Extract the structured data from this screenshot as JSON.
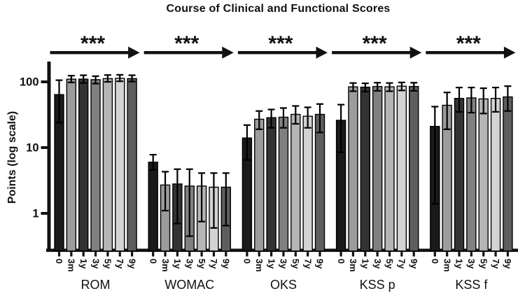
{
  "chart_data": {
    "type": "bar",
    "scale_y": "log10",
    "title": "Course of Clinical and Functional Scores",
    "ylabel": "Points (log scale)",
    "ylim": [
      0.27,
      200
    ],
    "yticks": [
      100,
      10,
      1
    ],
    "ytick_labels": [
      "100",
      "10",
      "1"
    ],
    "grid": false,
    "legend": "none",
    "categories": [
      "0",
      "3m",
      "1y",
      "3y",
      "5y",
      "7y",
      "9y"
    ],
    "bar_colors": [
      "#1a1a1a",
      "#9c9c9c",
      "#333333",
      "#808080",
      "#b5b5b5",
      "#d3d3d3",
      "#5e5e5e"
    ],
    "error_bar_color": "#000000",
    "axis_color": "#111111",
    "significance_marker": "***",
    "groups": [
      {
        "label": "ROM",
        "values": [
          64,
          110,
          110,
          108,
          112,
          113,
          112
        ],
        "err_lo": [
          24,
          98,
          96,
          94,
          100,
          102,
          101
        ],
        "err_hi": [
          106,
          124,
          126,
          122,
          127,
          128,
          126
        ],
        "significance": "***"
      },
      {
        "label": "WOMAC",
        "values": [
          6,
          2.7,
          2.8,
          2.6,
          2.6,
          2.5,
          2.5
        ],
        "err_lo": [
          4.6,
          1.1,
          0.7,
          0.45,
          0.75,
          0.6,
          0.65
        ],
        "err_hi": [
          7.8,
          4.3,
          4.7,
          4.7,
          4.1,
          4.1,
          4.1
        ],
        "significance": "***"
      },
      {
        "label": "OKS",
        "values": [
          14,
          27,
          28.5,
          29,
          32,
          30,
          32
        ],
        "err_lo": [
          6.5,
          19,
          20,
          20,
          23,
          20,
          17
        ],
        "err_hi": [
          22,
          36,
          38,
          40,
          43,
          41,
          46
        ],
        "significance": "***"
      },
      {
        "label": "KSS p",
        "values": [
          26,
          84,
          83,
          85,
          84,
          86,
          85
        ],
        "err_lo": [
          8.5,
          72,
          71,
          73,
          72,
          74,
          73
        ],
        "err_hi": [
          45,
          96,
          95,
          97,
          96,
          98,
          97
        ],
        "significance": "***"
      },
      {
        "label": "KSS f",
        "values": [
          21,
          44,
          56,
          57,
          55,
          56,
          59
        ],
        "err_lo": [
          1.4,
          19,
          35,
          34,
          33,
          35,
          36
        ],
        "err_hi": [
          42,
          69,
          82,
          82,
          80,
          82,
          86
        ],
        "significance": "***"
      }
    ]
  }
}
